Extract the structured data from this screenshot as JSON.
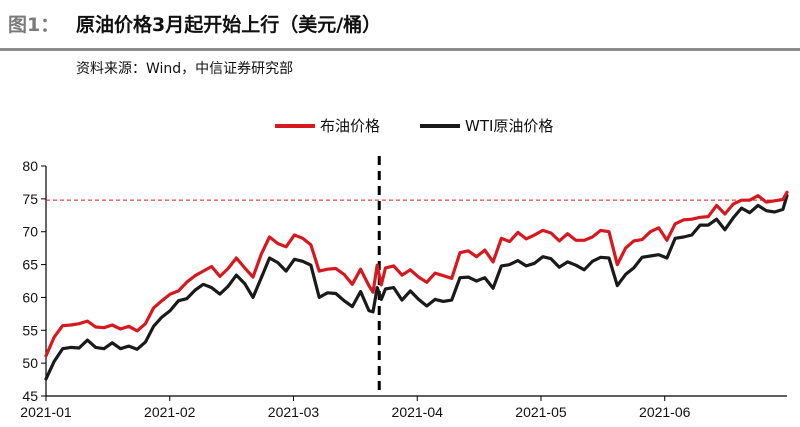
{
  "header": {
    "figure_label": "图1：",
    "title": "原油价格3月起开始上行（美元/桶）",
    "source": "资料来源：Wind，中信证券研究部"
  },
  "colors": {
    "brent": "#d7191f",
    "wti": "#1a1a1a",
    "reference_line": "#d7191f"
  },
  "chart_data": {
    "type": "line",
    "title": "",
    "xlabel": "",
    "ylabel": "",
    "ylim": [
      45,
      80
    ],
    "yticks": [
      45,
      50,
      55,
      60,
      65,
      70,
      75,
      80
    ],
    "xticks": [
      "2021-01",
      "2021-02",
      "2021-03",
      "2021-04",
      "2021-05",
      "2021-06"
    ],
    "grid": false,
    "legend_position": "top-center",
    "reference_line": {
      "y": 74.8,
      "style": "dashed"
    },
    "event_marker": {
      "x": 80.5,
      "style": "dashed vertical"
    },
    "x": [
      0,
      2,
      4,
      6,
      8,
      10,
      12,
      14,
      16,
      18,
      20,
      22,
      24,
      26,
      28,
      30,
      32,
      34,
      36,
      38,
      40,
      42,
      44,
      46,
      48,
      50,
      52,
      54,
      56,
      58,
      60,
      62,
      64,
      66,
      68,
      70,
      72,
      74,
      76,
      78,
      79,
      80,
      81,
      82,
      84,
      86,
      88,
      90,
      92,
      94,
      96,
      98,
      100,
      102,
      104,
      106,
      108,
      110,
      112,
      114,
      116,
      118,
      120,
      122,
      124,
      126,
      128,
      130,
      132,
      134,
      136,
      138,
      140,
      142,
      144,
      146,
      148,
      150,
      152,
      154,
      156,
      158,
      160,
      162,
      164,
      166,
      168,
      170,
      172,
      174,
      176,
      178,
      179
    ],
    "series": [
      {
        "name": "布油价格",
        "values": [
          51.1,
          54.0,
          55.7,
          55.8,
          56.0,
          56.4,
          55.5,
          55.4,
          55.8,
          55.2,
          55.6,
          54.9,
          56.0,
          58.4,
          59.5,
          60.5,
          61.0,
          62.3,
          63.3,
          64.0,
          64.7,
          63.2,
          64.4,
          66.0,
          64.5,
          63.1,
          66.6,
          69.2,
          68.2,
          67.7,
          69.5,
          69.0,
          68.0,
          64.0,
          64.3,
          64.4,
          63.5,
          62.0,
          64.3,
          61.8,
          60.8,
          64.9,
          61.9,
          64.5,
          64.8,
          63.4,
          64.2,
          63.1,
          62.3,
          63.7,
          63.3,
          62.9,
          66.8,
          67.1,
          66.2,
          67.2,
          65.4,
          69.0,
          68.5,
          69.9,
          68.9,
          69.5,
          70.2,
          69.8,
          68.6,
          69.7,
          68.7,
          68.7,
          69.2,
          70.2,
          70.0,
          65.0,
          67.5,
          68.6,
          68.8,
          70.0,
          70.6,
          68.7,
          71.2,
          71.8,
          71.9,
          72.2,
          72.3,
          74.0,
          72.7,
          74.2,
          74.8,
          74.8,
          75.5,
          74.5,
          74.7,
          74.9,
          76.0
        ]
      },
      {
        "name": "WTI原油价格",
        "values": [
          47.6,
          50.3,
          52.2,
          52.4,
          52.3,
          53.5,
          52.4,
          52.2,
          53.1,
          52.2,
          52.6,
          52.1,
          53.2,
          55.6,
          57.0,
          58.0,
          59.5,
          59.8,
          61.1,
          62.0,
          61.5,
          60.5,
          61.7,
          63.4,
          62.1,
          60.0,
          63.0,
          66.0,
          65.3,
          64.0,
          65.8,
          65.5,
          64.9,
          60.0,
          60.7,
          60.6,
          59.5,
          58.6,
          60.9,
          58.0,
          57.8,
          61.5,
          59.7,
          61.3,
          61.5,
          59.6,
          61.0,
          59.7,
          58.7,
          59.7,
          59.4,
          59.6,
          63.0,
          63.1,
          62.5,
          63.0,
          61.4,
          64.8,
          65.0,
          65.6,
          64.8,
          65.2,
          66.2,
          65.9,
          64.6,
          65.4,
          64.9,
          64.2,
          65.5,
          66.1,
          66.0,
          61.8,
          63.5,
          64.5,
          66.1,
          66.3,
          66.5,
          66.0,
          69.0,
          69.2,
          69.5,
          71.0,
          71.0,
          71.9,
          70.3,
          72.1,
          73.6,
          72.9,
          74.0,
          73.2,
          73.0,
          73.4,
          75.5
        ]
      }
    ]
  }
}
